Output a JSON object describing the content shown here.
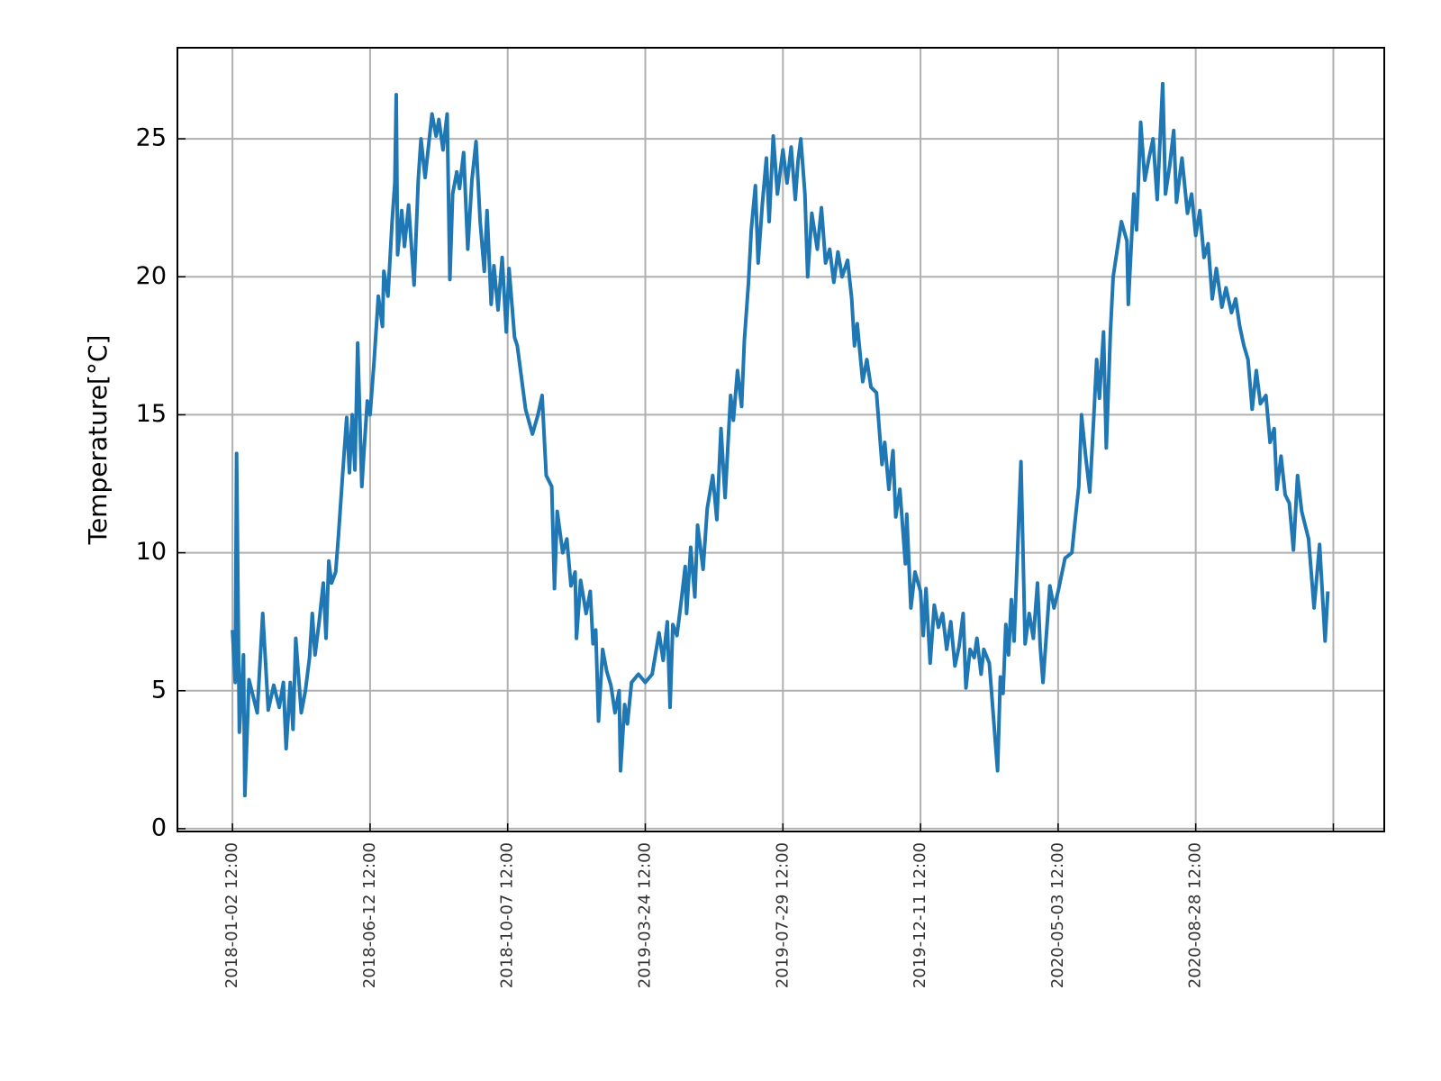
{
  "chart_data": {
    "type": "line",
    "y_label": "Temperature[°C]",
    "x": [
      0,
      2,
      3,
      5,
      8,
      9,
      12,
      18,
      22,
      26,
      30,
      34,
      37,
      39,
      42,
      44,
      46,
      50,
      53,
      56,
      58,
      60,
      63,
      66,
      68,
      70,
      72,
      75,
      77,
      80,
      83,
      85,
      87,
      89,
      91,
      94,
      96,
      98,
      100,
      103,
      106,
      109,
      110,
      113,
      116,
      118,
      119,
      120,
      123,
      125,
      128,
      132,
      135,
      137,
      140,
      145,
      148,
      150,
      153,
      156,
      158,
      160,
      163,
      165,
      168,
      171,
      174,
      177,
      180,
      183,
      185,
      188,
      190,
      193,
      196,
      199,
      201,
      205,
      207,
      213,
      218,
      222,
      225,
      228,
      232,
      234,
      236,
      240,
      243,
      246,
      249,
      250,
      253,
      257,
      260,
      262,
      264,
      266,
      269,
      272,
      275,
      278,
      281,
      282,
      285,
      287,
      290,
      295,
      300,
      305,
      307,
      310,
      313,
      316,
      318,
      320,
      323,
      326,
      329,
      330,
      333,
      336,
      338,
      342,
      345,
      349,
      352,
      355,
      358,
      362,
      364,
      367,
      370,
      372,
      375,
      377,
      380,
      382,
      385,
      388,
      390,
      393,
      396,
      400,
      403,
      406,
      409,
      411,
      413,
      416,
      418,
      421,
      425,
      428,
      431,
      434,
      437,
      440,
      443,
      447,
      450,
      452,
      454,
      458,
      461,
      464,
      468,
      472,
      474,
      477,
      480,
      482,
      485,
      489,
      490,
      493,
      496,
      500,
      502,
      504,
      507,
      510,
      513,
      516,
      519,
      522,
      525,
      528,
      531,
      533,
      536,
      539,
      541,
      544,
      546,
      550,
      556,
      558,
      560,
      562,
      564,
      566,
      568,
      573,
      576,
      579,
      582,
      585,
      587,
      589,
      592,
      594,
      597,
      600,
      605,
      610,
      612,
      615,
      617,
      620,
      623,
      626,
      628,
      630,
      633,
      635,
      638,
      640,
      643,
      646,
      650,
      651,
      655,
      657,
      660,
      663,
      666,
      669,
      672,
      676,
      678,
      681,
      684,
      686,
      690,
      694,
      697,
      700,
      703,
      706,
      709,
      712,
      715,
      719,
      722,
      726,
      729,
      732,
      735,
      738,
      741,
      744,
      747,
      751,
      754,
      757,
      759,
      762,
      765,
      768,
      771,
      774,
      777,
      782,
      786,
      790,
      794,
      796
    ],
    "series": [
      {
        "name": "Temperature",
        "color": "#1f77b4",
        "values": [
          7.2,
          5.3,
          13.6,
          3.5,
          6.3,
          1.2,
          5.4,
          4.2,
          7.8,
          4.3,
          5.2,
          4.4,
          5.3,
          2.9,
          5.3,
          3.6,
          6.9,
          4.2,
          5.0,
          6.2,
          7.8,
          6.3,
          7.5,
          8.9,
          6.9,
          9.7,
          8.9,
          9.3,
          10.6,
          12.8,
          14.9,
          12.9,
          15.0,
          13.0,
          17.6,
          12.4,
          14.0,
          15.5,
          15.0,
          17.0,
          19.3,
          18.2,
          20.2,
          19.3,
          22.0,
          23.4,
          26.6,
          20.8,
          22.4,
          21.1,
          22.6,
          19.7,
          23.5,
          25.0,
          23.6,
          25.9,
          25.1,
          25.7,
          24.6,
          25.9,
          19.9,
          23.0,
          23.8,
          23.2,
          24.5,
          21.0,
          23.5,
          24.9,
          22.0,
          20.2,
          22.4,
          19.0,
          20.4,
          18.8,
          20.7,
          18.0,
          20.3,
          17.8,
          17.5,
          15.2,
          14.3,
          15.0,
          15.7,
          12.8,
          12.4,
          8.7,
          11.5,
          10.0,
          10.5,
          8.8,
          9.3,
          6.9,
          9.0,
          7.8,
          8.6,
          6.7,
          7.2,
          3.9,
          6.5,
          5.7,
          5.2,
          4.2,
          5.0,
          2.1,
          4.5,
          3.8,
          5.3,
          5.6,
          5.3,
          5.6,
          6.2,
          7.1,
          6.1,
          7.5,
          4.4,
          7.4,
          7.0,
          8.2,
          9.5,
          7.8,
          10.2,
          8.4,
          11.0,
          9.4,
          11.6,
          12.8,
          11.2,
          14.5,
          12.0,
          15.7,
          14.8,
          16.6,
          15.3,
          17.7,
          19.8,
          21.7,
          23.3,
          20.5,
          22.6,
          24.3,
          22.0,
          25.1,
          23.0,
          24.6,
          23.4,
          24.7,
          22.8,
          24.2,
          25.0,
          23.0,
          20.0,
          22.3,
          21.0,
          22.5,
          20.5,
          21.0,
          19.8,
          20.9,
          20.0,
          20.6,
          19.2,
          17.5,
          18.3,
          16.2,
          17.0,
          16.0,
          15.8,
          13.2,
          14.0,
          12.3,
          13.7,
          11.3,
          12.3,
          9.6,
          11.4,
          8.0,
          9.3,
          8.6,
          7.0,
          8.7,
          6.0,
          8.1,
          7.3,
          7.8,
          6.5,
          7.5,
          5.9,
          6.6,
          7.8,
          5.1,
          6.5,
          6.2,
          6.9,
          5.6,
          6.5,
          6.0,
          2.1,
          5.5,
          4.9,
          7.4,
          6.3,
          8.3,
          6.8,
          13.3,
          6.7,
          7.8,
          6.9,
          8.9,
          6.6,
          5.3,
          7.4,
          8.8,
          8.0,
          8.6,
          9.8,
          10.0,
          11.0,
          12.4,
          15.0,
          13.5,
          12.2,
          15.0,
          17.0,
          15.6,
          18.0,
          13.8,
          18.0,
          20.0,
          21.0,
          22.0,
          21.3,
          19.0,
          23.0,
          21.7,
          25.6,
          23.5,
          24.3,
          25.0,
          22.8,
          27.0,
          23.0,
          24.0,
          25.3,
          22.7,
          24.3,
          22.3,
          23.0,
          21.5,
          22.4,
          20.7,
          21.2,
          19.2,
          20.3,
          18.9,
          19.6,
          18.7,
          19.2,
          18.2,
          17.5,
          17.0,
          15.2,
          16.6,
          15.4,
          15.7,
          14.0,
          14.5,
          12.3,
          13.5,
          12.1,
          11.8,
          10.1,
          12.8,
          11.5,
          10.5,
          8.0,
          10.3,
          6.8,
          8.6
        ]
      }
    ],
    "xlim": [
      -40,
      837
    ],
    "ylim": [
      -0.1,
      28.3
    ],
    "xticks": [
      {
        "value": 0,
        "label": "2018-01-02 12:00"
      },
      {
        "value": 100,
        "label": "2018-06-12 12:00"
      },
      {
        "value": 200,
        "label": "2018-10-07 12:00"
      },
      {
        "value": 300,
        "label": "2019-03-24 12:00"
      },
      {
        "value": 400,
        "label": "2019-07-29 12:00"
      },
      {
        "value": 500,
        "label": "2019-12-11 12:00"
      },
      {
        "value": 600,
        "label": "2020-05-03 12:00"
      },
      {
        "value": 700,
        "label": "2020-08-28 12:00"
      },
      {
        "value": 800,
        "label": null
      }
    ],
    "yticks": [
      0,
      5,
      10,
      15,
      20,
      25
    ],
    "grid": true
  }
}
